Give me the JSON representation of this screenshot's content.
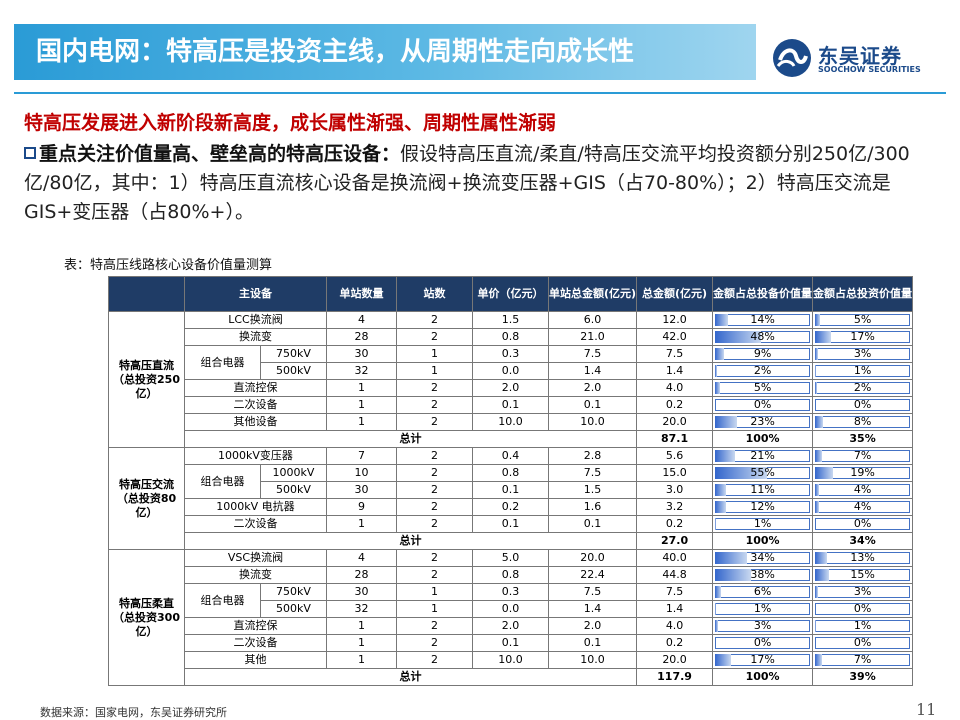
{
  "header": {
    "title": "国内电网：特高压是投资主线，从周期性走向成长性",
    "logo_cn": "东吴证券",
    "logo_en": "SOOCHOW SECURITIES"
  },
  "headline": "特高压发展进入新阶段新高度，成长属性渐强、周期性属性渐弱",
  "body": {
    "lead": "重点关注价值量高、壁垒高的特高压设备：",
    "text": "假设特高压直流/柔直/特高压交流平均投资额分别250亿/300亿/80亿，其中：1）特高压直流核心设备是换流阀+换流变压器+GIS（占70-80%）；2）特高压交流是GIS+变压器（占80%+）。"
  },
  "caption": "表：特高压线路核心设备价值量测算",
  "table": {
    "headers": [
      "主设备",
      "单站数量",
      "站数",
      "单价（亿元）",
      "单站总金额(亿元)",
      "总金额(亿元)",
      "金额占总投备价值量",
      "金额占总投资价值量"
    ],
    "groups": [
      {
        "label": "特高压直流（总投资250亿）",
        "rows": [
          {
            "device": "LCC换流阀",
            "qty": "4",
            "stations": "2",
            "price": "1.5",
            "station_total": "6.0",
            "total": "12.0",
            "share_equip": "14%",
            "share_equip_value": 0.14,
            "share_invest": "5%",
            "share_invest_value": 0.05
          },
          {
            "device": "换流变",
            "qty": "28",
            "stations": "2",
            "price": "0.8",
            "station_total": "21.0",
            "total": "42.0",
            "share_equip": "48%",
            "share_equip_value": 0.48,
            "share_invest": "17%",
            "share_invest_value": 0.17
          },
          {
            "device": "组合电器",
            "sub": "750kV",
            "qty": "30",
            "stations": "1",
            "price": "0.3",
            "station_total": "7.5",
            "total": "7.5",
            "share_equip": "9%",
            "share_equip_value": 0.09,
            "share_invest": "3%",
            "share_invest_value": 0.03
          },
          {
            "device": "组合电器",
            "sub": "500kV",
            "qty": "32",
            "stations": "1",
            "price": "0.0",
            "station_total": "1.4",
            "total": "1.4",
            "share_equip": "2%",
            "share_equip_value": 0.02,
            "share_invest": "1%",
            "share_invest_value": 0.01
          },
          {
            "device": "直流控保",
            "qty": "1",
            "stations": "2",
            "price": "2.0",
            "station_total": "2.0",
            "total": "4.0",
            "share_equip": "5%",
            "share_equip_value": 0.05,
            "share_invest": "2%",
            "share_invest_value": 0.02
          },
          {
            "device": "二次设备",
            "qty": "1",
            "stations": "2",
            "price": "0.1",
            "station_total": "0.1",
            "total": "0.2",
            "share_equip": "0%",
            "share_equip_value": 0.0,
            "share_invest": "0%",
            "share_invest_value": 0.0
          },
          {
            "device": "其他设备",
            "qty": "1",
            "stations": "2",
            "price": "10.0",
            "station_total": "10.0",
            "total": "20.0",
            "share_equip": "23%",
            "share_equip_value": 0.23,
            "share_invest": "8%",
            "share_invest_value": 0.08
          }
        ],
        "total": {
          "label": "总计",
          "total": "87.1",
          "share_equip": "100%",
          "share_invest": "35%"
        }
      },
      {
        "label": "特高压交流（总投资80亿）",
        "rows": [
          {
            "device": "1000kV变压器",
            "qty": "7",
            "stations": "2",
            "price": "0.4",
            "station_total": "2.8",
            "total": "5.6",
            "share_equip": "21%",
            "share_equip_value": 0.21,
            "share_invest": "7%",
            "share_invest_value": 0.07
          },
          {
            "device": "组合电器",
            "sub": "1000kV",
            "qty": "10",
            "stations": "2",
            "price": "0.8",
            "station_total": "7.5",
            "total": "15.0",
            "share_equip": "55%",
            "share_equip_value": 0.55,
            "share_invest": "19%",
            "share_invest_value": 0.19
          },
          {
            "device": "组合电器",
            "sub": "500kV",
            "qty": "30",
            "stations": "2",
            "price": "0.1",
            "station_total": "1.5",
            "total": "3.0",
            "share_equip": "11%",
            "share_equip_value": 0.11,
            "share_invest": "4%",
            "share_invest_value": 0.04
          },
          {
            "device": "1000kV 电抗器",
            "qty": "9",
            "stations": "2",
            "price": "0.2",
            "station_total": "1.6",
            "total": "3.2",
            "share_equip": "12%",
            "share_equip_value": 0.12,
            "share_invest": "4%",
            "share_invest_value": 0.04
          },
          {
            "device": "二次设备",
            "qty": "1",
            "stations": "2",
            "price": "0.1",
            "station_total": "0.1",
            "total": "0.2",
            "share_equip": "1%",
            "share_equip_value": 0.01,
            "share_invest": "0%",
            "share_invest_value": 0.0
          }
        ],
        "total": {
          "label": "总计",
          "total": "27.0",
          "share_equip": "100%",
          "share_invest": "34%"
        }
      },
      {
        "label": "特高压柔直（总投资300亿）",
        "rows": [
          {
            "device": "VSC换流阀",
            "qty": "4",
            "stations": "2",
            "price": "5.0",
            "station_total": "20.0",
            "total": "40.0",
            "share_equip": "34%",
            "share_equip_value": 0.34,
            "share_invest": "13%",
            "share_invest_value": 0.13
          },
          {
            "device": "换流变",
            "qty": "28",
            "stations": "2",
            "price": "0.8",
            "station_total": "22.4",
            "total": "44.8",
            "share_equip": "38%",
            "share_equip_value": 0.38,
            "share_invest": "15%",
            "share_invest_value": 0.15
          },
          {
            "device": "组合电器",
            "sub": "750kV",
            "qty": "30",
            "stations": "1",
            "price": "0.3",
            "station_total": "7.5",
            "total": "7.5",
            "share_equip": "6%",
            "share_equip_value": 0.06,
            "share_invest": "3%",
            "share_invest_value": 0.03
          },
          {
            "device": "组合电器",
            "sub": "500kV",
            "qty": "32",
            "stations": "1",
            "price": "0.0",
            "station_total": "1.4",
            "total": "1.4",
            "share_equip": "1%",
            "share_equip_value": 0.01,
            "share_invest": "0%",
            "share_invest_value": 0.0
          },
          {
            "device": "直流控保",
            "qty": "1",
            "stations": "2",
            "price": "2.0",
            "station_total": "2.0",
            "total": "4.0",
            "share_equip": "3%",
            "share_equip_value": 0.03,
            "share_invest": "1%",
            "share_invest_value": 0.01
          },
          {
            "device": "二次设备",
            "qty": "1",
            "stations": "2",
            "price": "0.1",
            "station_total": "0.1",
            "total": "0.2",
            "share_equip": "0%",
            "share_equip_value": 0.0,
            "share_invest": "0%",
            "share_invest_value": 0.0
          },
          {
            "device": "其他",
            "qty": "1",
            "stations": "2",
            "price": "10.0",
            "station_total": "10.0",
            "total": "20.0",
            "share_equip": "17%",
            "share_equip_value": 0.17,
            "share_invest": "7%",
            "share_invest_value": 0.07
          }
        ],
        "total": {
          "label": "总计",
          "total": "117.9",
          "share_equip": "100%",
          "share_invest": "39%"
        }
      }
    ]
  },
  "footer": {
    "source": "数据来源：国家电网，东吴证券研究所",
    "page": "11"
  },
  "colors": {
    "title_bar": "#2a9bd6",
    "headline": "#c00000",
    "table_header": "#1f3c66",
    "logo": "#1b4a8a"
  }
}
